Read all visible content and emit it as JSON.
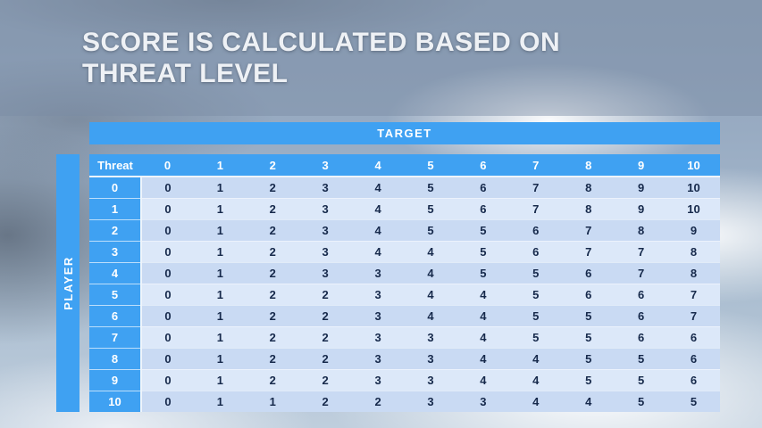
{
  "slide": {
    "title_line1": "SCORE IS CALCULATED BASED ON",
    "title_line2": "THREAT LEVEL"
  },
  "chart_data": {
    "type": "table",
    "target_label": "TARGET",
    "player_label": "PLAYER",
    "corner_label": "Threat",
    "column_headers": [
      "0",
      "1",
      "2",
      "3",
      "4",
      "5",
      "6",
      "7",
      "8",
      "9",
      "10"
    ],
    "rows": [
      {
        "label": "0",
        "values": [
          "0",
          "1",
          "2",
          "3",
          "4",
          "5",
          "6",
          "7",
          "8",
          "9",
          "10"
        ]
      },
      {
        "label": "1",
        "values": [
          "0",
          "1",
          "2",
          "3",
          "4",
          "5",
          "6",
          "7",
          "8",
          "9",
          "10"
        ]
      },
      {
        "label": "2",
        "values": [
          "0",
          "1",
          "2",
          "3",
          "4",
          "5",
          "5",
          "6",
          "7",
          "8",
          "9"
        ]
      },
      {
        "label": "3",
        "values": [
          "0",
          "1",
          "2",
          "3",
          "4",
          "4",
          "5",
          "6",
          "7",
          "7",
          "8"
        ]
      },
      {
        "label": "4",
        "values": [
          "0",
          "1",
          "2",
          "3",
          "3",
          "4",
          "5",
          "5",
          "6",
          "7",
          "8"
        ]
      },
      {
        "label": "5",
        "values": [
          "0",
          "1",
          "2",
          "2",
          "3",
          "4",
          "4",
          "5",
          "6",
          "6",
          "7"
        ]
      },
      {
        "label": "6",
        "values": [
          "0",
          "1",
          "2",
          "2",
          "3",
          "4",
          "4",
          "5",
          "5",
          "6",
          "7"
        ]
      },
      {
        "label": "7",
        "values": [
          "0",
          "1",
          "2",
          "2",
          "3",
          "3",
          "4",
          "5",
          "5",
          "6",
          "6"
        ]
      },
      {
        "label": "8",
        "values": [
          "0",
          "1",
          "2",
          "2",
          "3",
          "3",
          "4",
          "4",
          "5",
          "5",
          "6"
        ]
      },
      {
        "label": "9",
        "values": [
          "0",
          "1",
          "2",
          "2",
          "3",
          "3",
          "4",
          "4",
          "5",
          "5",
          "6"
        ]
      },
      {
        "label": "10",
        "values": [
          "0",
          "1",
          "1",
          "2",
          "2",
          "3",
          "3",
          "4",
          "4",
          "5",
          "5"
        ]
      }
    ]
  },
  "colors": {
    "accent_blue": "#3FA1F2",
    "row_light": "#DCE8F9",
    "row_dark": "#C9DAF3",
    "cell_text": "#16294B",
    "header_text": "#FFFFFF"
  }
}
